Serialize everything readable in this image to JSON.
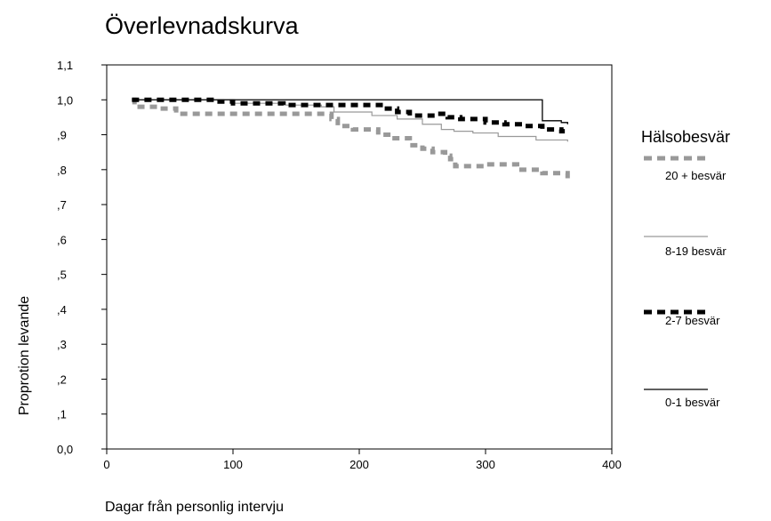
{
  "chart_data": {
    "type": "line",
    "title": "Överlevnadskurva",
    "xlabel": "Dagar från personlig intervju",
    "ylabel": "Proprotion levande",
    "xlim": [
      0,
      400
    ],
    "ylim": [
      0,
      1.1
    ],
    "xticks": [
      0,
      100,
      200,
      300,
      400
    ],
    "xtick_labels": [
      "0",
      "100",
      "200",
      "300",
      "400"
    ],
    "yticks": [
      0,
      0.1,
      0.2,
      0.3,
      0.4,
      0.5,
      0.6,
      0.7,
      0.8,
      0.9,
      1.0,
      1.1
    ],
    "ytick_labels": [
      "0,0",
      ",1",
      ",2",
      ",3",
      ",4",
      ",5",
      ",6",
      ",7",
      ",8",
      ",9",
      "1,0",
      "1,1"
    ],
    "grid": false,
    "legend_title": "Hälsobesvär",
    "legend_position": "right",
    "series": [
      {
        "name": "20 + besvär",
        "style": "dashed-gray",
        "color": "#999999",
        "x": [
          20,
          22,
          40,
          55,
          178,
          183,
          195,
          215,
          225,
          240,
          250,
          258,
          268,
          272,
          276,
          300,
          325,
          345,
          365
        ],
        "y": [
          1.0,
          0.98,
          0.975,
          0.96,
          0.945,
          0.925,
          0.915,
          0.9,
          0.89,
          0.87,
          0.86,
          0.85,
          0.84,
          0.83,
          0.81,
          0.815,
          0.8,
          0.79,
          0.77
        ]
      },
      {
        "name": "8-19 besvär",
        "style": "thin-gray",
        "color": "#999999",
        "x": [
          20,
          100,
          140,
          170,
          180,
          210,
          230,
          250,
          265,
          275,
          290,
          310,
          340,
          365
        ],
        "y": [
          1.0,
          0.99,
          0.985,
          0.98,
          0.965,
          0.955,
          0.945,
          0.93,
          0.915,
          0.91,
          0.905,
          0.895,
          0.885,
          0.88
        ]
      },
      {
        "name": "2-7 besvär",
        "style": "dashed-black",
        "color": "#000000",
        "x": [
          20,
          85,
          100,
          140,
          200,
          220,
          230,
          240,
          260,
          270,
          280,
          300,
          315,
          330,
          345,
          360,
          365
        ],
        "y": [
          1.0,
          0.995,
          0.99,
          0.985,
          0.985,
          0.975,
          0.965,
          0.955,
          0.96,
          0.95,
          0.945,
          0.935,
          0.93,
          0.925,
          0.915,
          0.91,
          0.905
        ]
      },
      {
        "name": "0-1 besvär",
        "style": "solid-black",
        "color": "#000000",
        "x": [
          20,
          345,
          360,
          365
        ],
        "y": [
          1.0,
          0.94,
          0.935,
          0.93
        ]
      }
    ]
  }
}
